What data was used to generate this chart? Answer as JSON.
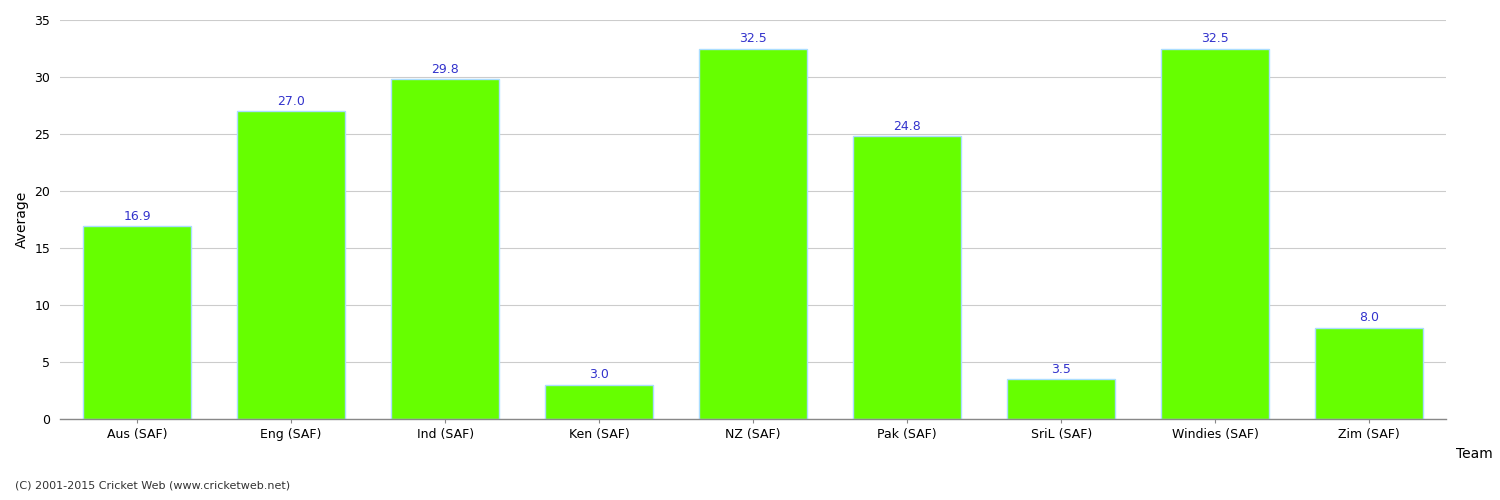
{
  "categories": [
    "Aus (SAF)",
    "Eng (SAF)",
    "Ind (SAF)",
    "Ken (SAF)",
    "NZ (SAF)",
    "Pak (SAF)",
    "SriL (SAF)",
    "Windies (SAF)",
    "Zim (SAF)"
  ],
  "values": [
    16.9,
    27.0,
    29.8,
    3.0,
    32.5,
    24.8,
    3.5,
    32.5,
    8.0
  ],
  "bar_color": "#66ff00",
  "bar_edge_color": "#aaddff",
  "label_color": "#3333cc",
  "xlabel": "Team",
  "ylabel": "Average",
  "ylim": [
    0,
    35
  ],
  "yticks": [
    0,
    5,
    10,
    15,
    20,
    25,
    30,
    35
  ],
  "background_color": "#ffffff",
  "grid_color": "#cccccc",
  "footer_text": "(C) 2001-2015 Cricket Web (www.cricketweb.net)",
  "label_fontsize": 9,
  "axis_label_fontsize": 10,
  "tick_fontsize": 9,
  "footer_fontsize": 8
}
